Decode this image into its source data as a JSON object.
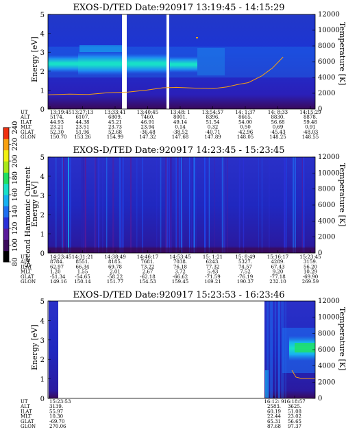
{
  "colorbar": {
    "label": "Second Harmonic Current",
    "ticks": [
      "240",
      "220",
      "200",
      "180",
      "160",
      "140",
      "120",
      "100",
      "80"
    ],
    "colors": [
      "#000000",
      "#3a0a5a",
      "#5a1a9a",
      "#2a30d8",
      "#1e6ef0",
      "#16b0f0",
      "#18e0c8",
      "#20e060",
      "#a8e818",
      "#f0f010",
      "#f8a010",
      "#f03010"
    ]
  },
  "row_labels": [
    "UT",
    "ALT",
    "ILAT",
    "MLT",
    "GLAT",
    "GLON"
  ],
  "chart_data": [
    {
      "type": "heatmap",
      "title": "EXOS-D/TED  Date:920917  13:19:45 - 14:15:29",
      "ylabel": "Energy [eV]",
      "y2label": "Temperature [K]",
      "ylim": [
        0,
        5
      ],
      "y2lim": [
        0,
        12000
      ],
      "yticks": [
        "0",
        "1",
        "2",
        "3",
        "4",
        "5"
      ],
      "y2ticks": [
        "0",
        "2000",
        "4000",
        "6000",
        "8000",
        "10000",
        "12000"
      ],
      "columns": [
        {
          "UT": "13:19:45",
          "ALT": "5174.",
          "ILAT": "44.93",
          "MLT": "23.21",
          "GLAT": "52.30",
          "GLON": "150.70"
        },
        {
          "UT": "13:27:13",
          "ALT": "6107.",
          "ILAT": "44.38",
          "MLT": "23.51",
          "GLAT": "51.96",
          "GLON": "153.26"
        },
        {
          "UT": "13:33:41",
          "ALT": "6809.",
          "ILAT": "45.21",
          "MLT": "23.73",
          "GLAT": "52.68",
          "GLON": "154.99"
        },
        {
          "UT": "13:40:45",
          "ALT": "7460.",
          "ILAT": "46.91",
          "MLT": "23.94",
          "GLAT": "-36.48",
          "GLON": "147.32"
        },
        {
          "UT": "13:48: 1",
          "ALT": "8001.",
          "ILAT": "49.14",
          "MLT": "0.14",
          "GLAT": "-38.52",
          "GLON": "147.68"
        },
        {
          "UT": "13:54:57",
          "ALT": "8396.",
          "ILAT": "51.54",
          "MLT": "0.32",
          "GLAT": "-40.71",
          "GLON": "147.89"
        },
        {
          "UT": "14: 1:37",
          "ALT": "8665.",
          "ILAT": "54.00",
          "MLT": "0.50",
          "GLAT": "-42.96",
          "GLON": "148.05"
        },
        {
          "UT": "14: 8:33",
          "ALT": "8830.",
          "ILAT": "56.68",
          "MLT": "0.69",
          "GLAT": "-45.43",
          "GLON": "148.25"
        },
        {
          "UT": "14:15:29",
          "ALT": "8878.",
          "ILAT": "59.48",
          "MLT": "0.91",
          "GLAT": "-48.03",
          "GLON": "148.55"
        }
      ],
      "temperature_curve": {
        "x": [
          0,
          0.08,
          0.15,
          0.22,
          0.3,
          0.37,
          0.43,
          0.48,
          0.55,
          0.62,
          0.67,
          0.71,
          0.75,
          0.8,
          0.84,
          0.88
        ],
        "y": [
          1800,
          1900,
          1850,
          2050,
          2150,
          2400,
          2700,
          2750,
          2650,
          2600,
          2800,
          3100,
          3350,
          4200,
          5200,
          6600
        ]
      }
    },
    {
      "type": "heatmap",
      "title": "EXOS-D/TED  Date:920917  14:23:45 - 15:23:45",
      "ylabel": "Energy [eV]",
      "y2label": "Temperature [K]",
      "ylim": [
        0,
        5
      ],
      "y2lim": [
        0,
        12000
      ],
      "yticks": [
        "0",
        "1",
        "2",
        "3",
        "4",
        "5"
      ],
      "y2ticks": [
        "0",
        "2000",
        "4000",
        "6000",
        "8000",
        "10000",
        "12000"
      ],
      "columns": [
        {
          "UT": "14:23:45",
          "ALT": "8784.",
          "ILAT": "62.97",
          "MLT": "1.20",
          "GLAT": "-51.34",
          "GLON": "149.16"
        },
        {
          "UT": "14:31:21",
          "ALT": "8551.",
          "ILAT": "66.34",
          "MLT": "1.55",
          "GLAT": "-54.65",
          "GLON": "150.14"
        },
        {
          "UT": "14:38:49",
          "ALT": "8185.",
          "ILAT": "69.78",
          "MLT": "2.01",
          "GLAT": "-58.22",
          "GLON": "151.77"
        },
        {
          "UT": "14:46:17",
          "ALT": "7681.",
          "ILAT": "73.22",
          "MLT": "2.67",
          "GLAT": "-62.18",
          "GLON": "154.53"
        },
        {
          "UT": "14:53:45",
          "ALT": "7038.",
          "ILAT": "76.18",
          "MLT": "3.72",
          "GLAT": "-66.62",
          "GLON": "159.45"
        },
        {
          "UT": "15: 1:21",
          "ALT": "6243.",
          "ILAT": "77.32",
          "MLT": "5.43",
          "GLAT": "-71.59",
          "GLON": "169.21"
        },
        {
          "UT": "15: 8:49",
          "ALT": "5327.",
          "ILAT": "74.57",
          "MLT": "7.52",
          "GLAT": "-76.19",
          "GLON": "190.37"
        },
        {
          "UT": "15:16:17",
          "ALT": "4289.",
          "ILAT": "67.43",
          "MLT": "9.20",
          "GLAT": "-77.18",
          "GLON": "232.10"
        },
        {
          "UT": "15:23:45",
          "ALT": "3159.",
          "ILAT": "56.20",
          "MLT": "10.29",
          "GLAT": "-69.90",
          "GLON": "269.59"
        }
      ]
    },
    {
      "type": "heatmap",
      "title": "EXOS-D/TED  Date:920917  15:23:53 - 16:23:46",
      "ylabel": "Energy [eV]",
      "y2label": "Temperature [K]",
      "ylim": [
        0,
        5
      ],
      "y2lim": [
        0,
        12000
      ],
      "yticks": [
        "0",
        "1",
        "2",
        "3",
        "4",
        "5"
      ],
      "y2ticks": [
        "0",
        "2000",
        "4000",
        "6000",
        "8000",
        "10000",
        "12000"
      ],
      "columns": [
        {
          "UT": "15:23:53",
          "ALT": "3139.",
          "ILAT": "55.97",
          "MLT": "10.30",
          "GLAT": "-69.70",
          "GLON": "270.06"
        },
        {
          "UT": "16:12: 9",
          "ALT": "2583.",
          "ILAT": "60.19",
          "MLT": "22.44",
          "GLAT": "65.31",
          "GLON": "87.68"
        },
        {
          "UT": "16:18:57",
          "ALT": "3625.",
          "ILAT": "51.08",
          "MLT": "23.02",
          "GLAT": "56.65",
          "GLON": "97.37"
        }
      ]
    }
  ]
}
